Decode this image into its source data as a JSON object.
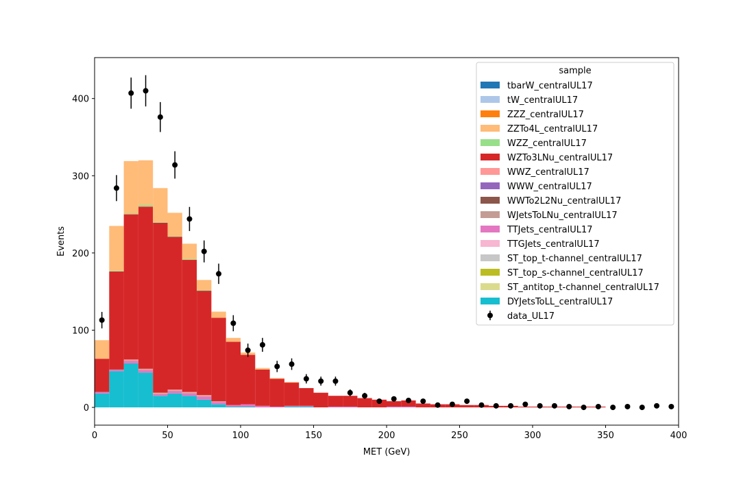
{
  "chart_data": {
    "type": "bar",
    "stacked": true,
    "histogram": true,
    "xlabel": "MET (GeV)",
    "ylabel": "Events",
    "xlim": [
      0,
      400
    ],
    "ylim": [
      -23,
      453
    ],
    "bin_edges": [
      0,
      10,
      20,
      30,
      40,
      50,
      60,
      70,
      80,
      90,
      100,
      110,
      120,
      130,
      140,
      150,
      160,
      170,
      180,
      190,
      200,
      210,
      220,
      230,
      240,
      250,
      260,
      270,
      280,
      290,
      300,
      310,
      320,
      330,
      340,
      350,
      360,
      370,
      380,
      390,
      400
    ],
    "x_ticks": [
      0,
      50,
      100,
      150,
      200,
      250,
      300,
      350,
      400
    ],
    "y_ticks": [
      0,
      100,
      200,
      300,
      400
    ],
    "legend": {
      "title": "sample",
      "placement": "upper right"
    },
    "series": [
      {
        "name": "tbarW_centralUL17",
        "color": "#1f77b4",
        "values": [
          0,
          0,
          0,
          0,
          0,
          0,
          0,
          0,
          0,
          0,
          0,
          0,
          0,
          0,
          0,
          0,
          0,
          0,
          0,
          0,
          0,
          0,
          0,
          0,
          0,
          0,
          0,
          0,
          0,
          0,
          0,
          0,
          0,
          0,
          0,
          0,
          0,
          0,
          0,
          0
        ]
      },
      {
        "name": "tW_centralUL17",
        "color": "#aec7e8",
        "values": [
          0,
          0,
          0,
          0,
          0,
          0,
          0,
          0,
          0,
          0,
          0,
          0,
          0,
          0,
          0,
          0,
          0,
          0,
          0,
          0,
          0,
          0,
          0,
          0,
          0,
          0,
          0,
          0,
          0,
          0,
          0,
          0,
          0,
          0,
          0,
          0,
          0,
          0,
          0,
          0
        ]
      },
      {
        "name": "ZZZ_centralUL17",
        "color": "#ff7f0e",
        "values": [
          0,
          0,
          0,
          0,
          0,
          0,
          0,
          0,
          0,
          0,
          0,
          0,
          0,
          0,
          0,
          0,
          0,
          0,
          0,
          0,
          0,
          0,
          0,
          0,
          0,
          0,
          0,
          0,
          0,
          0,
          0,
          0,
          0,
          0,
          0,
          0,
          0,
          0,
          0,
          0
        ]
      },
      {
        "name": "ZZTo4L_centralUL17",
        "color": "#ffbb78",
        "values": [
          24,
          58,
          68,
          58,
          44,
          30,
          20,
          13,
          8,
          5,
          3,
          2,
          1,
          1,
          0,
          0,
          0,
          0,
          0,
          0,
          0,
          0,
          0,
          0,
          0,
          0,
          0,
          0,
          0,
          0,
          0,
          0,
          0,
          0,
          0,
          0,
          0,
          0,
          0,
          0
        ]
      },
      {
        "name": "WZZ_centralUL17",
        "color": "#98df8a",
        "values": [
          0,
          1,
          1,
          2,
          1,
          1,
          1,
          1,
          0,
          0,
          0,
          0,
          0,
          0,
          0,
          0,
          0,
          0,
          0,
          0,
          0,
          0,
          0,
          0,
          0,
          0,
          0,
          0,
          0,
          0,
          0,
          0,
          0,
          0,
          0,
          0,
          0,
          0,
          0,
          0
        ]
      },
      {
        "name": "WZTo3LNu_centralUL17",
        "color": "#d62728",
        "values": [
          43,
          127,
          188,
          210,
          220,
          198,
          171,
          135,
          108,
          82,
          64,
          47,
          36,
          30,
          23,
          19,
          14,
          14,
          12,
          10,
          7,
          8,
          5,
          4,
          4,
          3,
          3,
          2,
          2,
          1,
          1,
          1,
          1,
          1,
          1,
          0,
          0,
          0,
          0,
          0
        ]
      },
      {
        "name": "WWZ_centralUL17",
        "color": "#ff9896",
        "values": [
          0,
          0,
          1,
          1,
          1,
          1,
          1,
          1,
          0,
          0,
          0,
          0,
          0,
          0,
          0,
          0,
          0,
          0,
          0,
          0,
          0,
          0,
          0,
          0,
          0,
          0,
          0,
          0,
          0,
          0,
          0,
          0,
          0,
          0,
          0,
          0,
          0,
          0,
          0,
          0
        ]
      },
      {
        "name": "WWW_centralUL17",
        "color": "#9467bd",
        "values": [
          0,
          0,
          0,
          0,
          0,
          0,
          0,
          0,
          0,
          0,
          0,
          0,
          0,
          0,
          0,
          0,
          0,
          0,
          0,
          0,
          0,
          0,
          0,
          0,
          0,
          0,
          0,
          0,
          0,
          0,
          0,
          0,
          0,
          0,
          0,
          0,
          0,
          0,
          0,
          0
        ]
      },
      {
        "name": "WWTo2L2Nu_centralUL17",
        "color": "#8c564b",
        "values": [
          0,
          0,
          0,
          0,
          0,
          0,
          0,
          0,
          0,
          0,
          0,
          0,
          0,
          0,
          0,
          0,
          0,
          0,
          0,
          0,
          0,
          0,
          0,
          0,
          0,
          0,
          0,
          0,
          0,
          0,
          0,
          0,
          0,
          0,
          0,
          0,
          0,
          0,
          0,
          0
        ]
      },
      {
        "name": "WJetsToLNu_centralUL17",
        "color": "#c49c94",
        "values": [
          0,
          0,
          1,
          1,
          1,
          1,
          1,
          1,
          1,
          0,
          0,
          0,
          0,
          0,
          0,
          0,
          0,
          0,
          0,
          0,
          0,
          0,
          0,
          0,
          0,
          0,
          0,
          0,
          0,
          0,
          0,
          0,
          0,
          0,
          0,
          0,
          0,
          0,
          0,
          0
        ]
      },
      {
        "name": "TTJets_centralUL17",
        "color": "#e377c2",
        "values": [
          2,
          2,
          3,
          3,
          2,
          3,
          3,
          4,
          3,
          2,
          3,
          2,
          1,
          1,
          1,
          0,
          1,
          1,
          0,
          0,
          1,
          1,
          0,
          0,
          0,
          0,
          0,
          0,
          0,
          0,
          0,
          0,
          0,
          0,
          0,
          0,
          0,
          0,
          0,
          0
        ]
      },
      {
        "name": "TTGJets_centralUL17",
        "color": "#f7b6d2",
        "values": [
          0,
          0,
          0,
          0,
          0,
          0,
          0,
          0,
          0,
          0,
          0,
          0,
          0,
          0,
          0,
          0,
          0,
          0,
          0,
          0,
          0,
          0,
          0,
          0,
          0,
          0,
          0,
          0,
          0,
          0,
          0,
          0,
          0,
          0,
          0,
          0,
          0,
          0,
          0,
          0
        ]
      },
      {
        "name": "ST_top_t-channel_centralUL17",
        "color": "#c7c7c7",
        "values": [
          0,
          0,
          0,
          0,
          0,
          0,
          0,
          0,
          0,
          0,
          0,
          0,
          0,
          0,
          0,
          0,
          0,
          0,
          0,
          0,
          0,
          0,
          0,
          0,
          0,
          0,
          0,
          0,
          0,
          0,
          0,
          0,
          0,
          0,
          0,
          0,
          0,
          0,
          0,
          0
        ]
      },
      {
        "name": "ST_top_s-channel_centralUL17",
        "color": "#bcbd22",
        "values": [
          0,
          0,
          0,
          0,
          0,
          0,
          0,
          0,
          0,
          0,
          0,
          0,
          0,
          0,
          0,
          0,
          0,
          0,
          0,
          0,
          0,
          0,
          0,
          0,
          0,
          0,
          0,
          0,
          0,
          0,
          0,
          0,
          0,
          0,
          0,
          0,
          0,
          0,
          0,
          0
        ]
      },
      {
        "name": "ST_antitop_t-channel_centralUL17",
        "color": "#dbdb8d",
        "values": [
          0,
          0,
          0,
          0,
          0,
          0,
          0,
          0,
          0,
          0,
          0,
          0,
          0,
          0,
          0,
          0,
          0,
          0,
          0,
          0,
          0,
          0,
          0,
          0,
          0,
          0,
          0,
          0,
          0,
          0,
          0,
          0,
          0,
          0,
          0,
          0,
          0,
          0,
          0,
          0
        ]
      },
      {
        "name": "DYJetsToLL_centralUL17",
        "color": "#17becf",
        "values": [
          18,
          47,
          57,
          45,
          15,
          18,
          15,
          10,
          4,
          1,
          1,
          0,
          0,
          1,
          1,
          0,
          0,
          0,
          0,
          0,
          0,
          0,
          0,
          0,
          0,
          0,
          0,
          0,
          0,
          0,
          0,
          0,
          0,
          0,
          0,
          0,
          0,
          0,
          0,
          0
        ]
      }
    ],
    "data_series": {
      "name": "data_UL17",
      "color": "#000000",
      "values": [
        113,
        284,
        407,
        410,
        376,
        314,
        244,
        202,
        173,
        109,
        74,
        81,
        53,
        56,
        37,
        34,
        34,
        19,
        15,
        8,
        11,
        9,
        8,
        3,
        4,
        8,
        3,
        2,
        2,
        4,
        2,
        2,
        1,
        0,
        1,
        0,
        1,
        0,
        2,
        1
      ]
    }
  }
}
